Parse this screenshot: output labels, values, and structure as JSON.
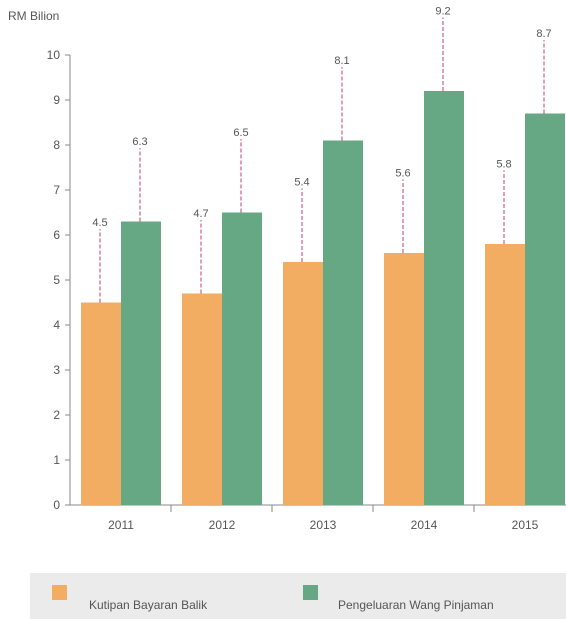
{
  "chart_data": {
    "type": "bar",
    "ylabel": "RM Bilion",
    "xlabel": "",
    "ylim": [
      0,
      10
    ],
    "yticks": [
      "0",
      "1",
      "2",
      "3",
      "4",
      "5",
      "6",
      "7",
      "8",
      "9",
      "10"
    ],
    "categories": [
      "2011",
      "2012",
      "2013",
      "2014",
      "2015"
    ],
    "series": [
      {
        "name": "Kutipan Bayaran Balik",
        "values": [
          4.5,
          4.7,
          5.4,
          5.6,
          5.8
        ],
        "labels": [
          "4.5",
          "4.7",
          "5.4",
          "5.6",
          "5.8"
        ],
        "color": "#f2ad63"
      },
      {
        "name": "Pengeluaran Wang Pinjaman",
        "values": [
          6.3,
          6.5,
          8.1,
          9.2,
          8.7
        ],
        "labels": [
          "6.3",
          "6.5",
          "8.1",
          "9.2",
          "8.7"
        ],
        "color": "#66a784"
      }
    ],
    "legend_position": "bottom",
    "leader_line_color": "#c24078",
    "grid": false
  }
}
